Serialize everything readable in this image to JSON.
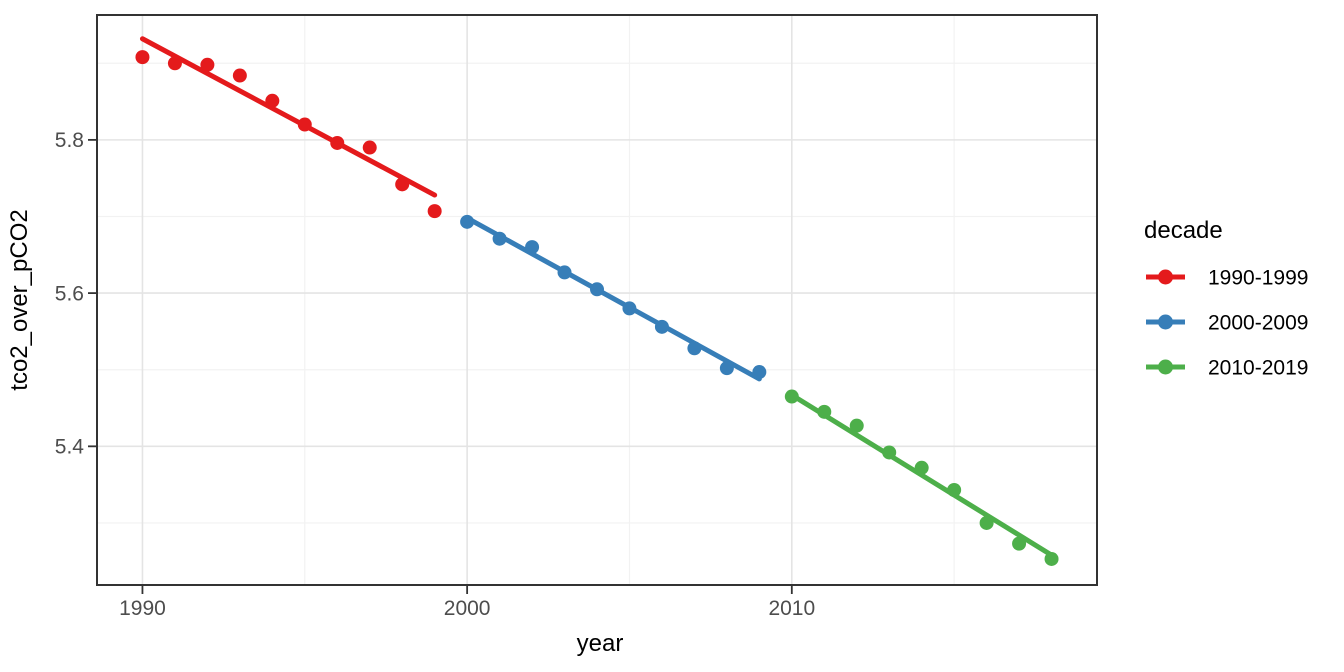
{
  "chart_data": {
    "type": "scatter",
    "title": "",
    "xlabel": "year",
    "ylabel": "tco2_over_pCO2",
    "legend_title": "decade",
    "legend_position": "right",
    "grid": true,
    "xlim": [
      1988.6,
      2019.4
    ],
    "ylim": [
      5.219,
      5.963
    ],
    "x_major_ticks": [
      1990,
      2000,
      2010
    ],
    "x_tick_labels": [
      "1990",
      "2000",
      "2010"
    ],
    "x_minor_gridlines": [
      1995,
      2005,
      2015
    ],
    "y_major_ticks": [
      5.4,
      5.6,
      5.8
    ],
    "y_tick_labels": [
      "5.4",
      "5.6",
      "5.8"
    ],
    "y_minor_gridlines": [
      5.3,
      5.5,
      5.7,
      5.9
    ],
    "series": [
      {
        "name": "1990-1999",
        "color": "#E41A1C",
        "x": [
          1990,
          1991,
          1992,
          1993,
          1994,
          1995,
          1996,
          1997,
          1998,
          1999
        ],
        "y": [
          5.908,
          5.9,
          5.898,
          5.884,
          5.851,
          5.82,
          5.796,
          5.79,
          5.742,
          5.707
        ],
        "trend": {
          "x1": 1990,
          "y1": 5.932,
          "x2": 1999,
          "y2": 5.728
        }
      },
      {
        "name": "2000-2009",
        "color": "#377EB8",
        "x": [
          2000,
          2001,
          2002,
          2003,
          2004,
          2005,
          2006,
          2007,
          2008,
          2009
        ],
        "y": [
          5.693,
          5.671,
          5.66,
          5.627,
          5.605,
          5.58,
          5.556,
          5.528,
          5.502,
          5.497
        ],
        "trend": {
          "x1": 2000,
          "y1": 5.698,
          "x2": 2009,
          "y2": 5.488
        }
      },
      {
        "name": "2010-2019",
        "color": "#4DAF4A",
        "x": [
          2010,
          2011,
          2012,
          2013,
          2014,
          2015,
          2016,
          2017,
          2018
        ],
        "y": [
          5.465,
          5.445,
          5.427,
          5.392,
          5.372,
          5.343,
          5.3,
          5.273,
          5.253
        ],
        "trend": {
          "x1": 2010,
          "y1": 5.467,
          "x2": 2018,
          "y2": 5.258
        }
      }
    ]
  },
  "style": {
    "background": "#FFFFFF",
    "panel_background": "#FFFFFF",
    "panel_border_color": "#333333",
    "grid_major_color": "#E4E4E4",
    "grid_minor_color": "#F2F2F2",
    "tick_mark_color": "#333333",
    "tick_label_color": "#4D4D4D",
    "axis_title_color": "#000000"
  }
}
